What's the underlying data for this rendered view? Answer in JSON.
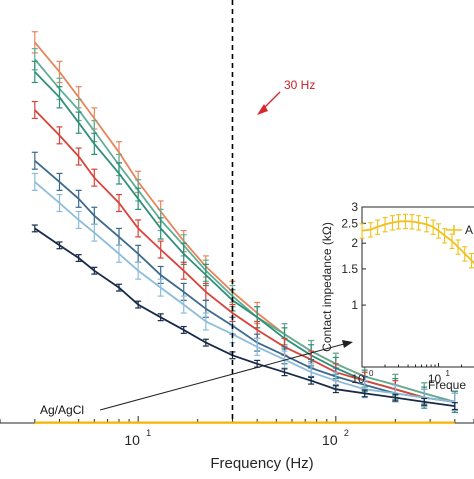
{
  "chart_data": [
    {
      "type": "line",
      "xlabel": "Frequency (Hz)",
      "xscale": "log",
      "xlim": [
        2,
        500
      ],
      "ylim": [
        0,
        1
      ],
      "x_ticks": [
        {
          "base": "10",
          "exp": "1",
          "value": 10
        },
        {
          "base": "10",
          "exp": "2",
          "value": 100
        }
      ],
      "grid": false,
      "vline": {
        "x": 30,
        "style": "dashed"
      },
      "annotations": [
        {
          "text": "30 Hz",
          "x": 30,
          "color": "#d8262f"
        },
        {
          "text": "Ag/AgCl",
          "color": "#111111"
        }
      ],
      "x": [
        3,
        4,
        5,
        6,
        8,
        10,
        13,
        17,
        22,
        30,
        40,
        55,
        75,
        100,
        140,
        200,
        280,
        400
      ],
      "series": [
        {
          "color": "#e8845a",
          "values": [
            0.9,
            0.83,
            0.77,
            0.72,
            0.64,
            0.57,
            0.5,
            0.43,
            0.37,
            0.31,
            0.26,
            0.21,
            0.17,
            0.14,
            0.11,
            0.09,
            0.07,
            0.05
          ],
          "err": 0.025
        },
        {
          "color": "#5fae95",
          "values": [
            0.86,
            0.79,
            0.74,
            0.69,
            0.61,
            0.55,
            0.48,
            0.42,
            0.36,
            0.3,
            0.25,
            0.21,
            0.17,
            0.14,
            0.11,
            0.09,
            0.07,
            0.05
          ],
          "err": 0.025
        },
        {
          "color": "#2f9078",
          "values": [
            0.83,
            0.77,
            0.71,
            0.66,
            0.59,
            0.53,
            0.46,
            0.4,
            0.35,
            0.29,
            0.25,
            0.2,
            0.16,
            0.13,
            0.1,
            0.08,
            0.06,
            0.05
          ],
          "err": 0.025
        },
        {
          "color": "#d8433a",
          "values": [
            0.74,
            0.68,
            0.63,
            0.58,
            0.52,
            0.46,
            0.41,
            0.36,
            0.31,
            0.26,
            0.22,
            0.18,
            0.15,
            0.12,
            0.1,
            0.08,
            0.06,
            0.05
          ],
          "err": 0.02
        },
        {
          "color": "#3c6a8e",
          "values": [
            0.62,
            0.57,
            0.53,
            0.49,
            0.44,
            0.4,
            0.35,
            0.31,
            0.27,
            0.23,
            0.19,
            0.16,
            0.13,
            0.11,
            0.09,
            0.07,
            0.06,
            0.05
          ],
          "err": 0.02
        },
        {
          "color": "#8cbcdc",
          "values": [
            0.57,
            0.52,
            0.48,
            0.45,
            0.4,
            0.36,
            0.32,
            0.28,
            0.24,
            0.21,
            0.18,
            0.15,
            0.12,
            0.1,
            0.08,
            0.07,
            0.06,
            0.05
          ],
          "err": 0.02
        },
        {
          "color": "#172a49",
          "values": [
            0.46,
            0.42,
            0.39,
            0.36,
            0.32,
            0.28,
            0.25,
            0.22,
            0.19,
            0.16,
            0.14,
            0.12,
            0.1,
            0.08,
            0.07,
            0.06,
            0.05,
            0.04
          ],
          "err": 0.008
        },
        {
          "color": "#f4b400",
          "values": [
            0.001,
            0.001,
            0.001,
            0.001,
            0.001,
            0.001,
            0.001,
            0.001,
            0.001,
            0.001,
            0.001,
            0.001,
            0.001,
            0.001,
            0.001,
            0.001,
            0.001,
            0.001
          ],
          "err": 0
        }
      ]
    },
    {
      "type": "line",
      "role": "inset",
      "ylabel": "Contact impedance (kΩ)",
      "xlabel": "Freque",
      "xscale": "log",
      "yscale": "log",
      "xlim": [
        1,
        50
      ],
      "ylim": [
        0.5,
        3
      ],
      "y_ticks": [
        "3",
        "2.5",
        "2",
        "1.5",
        "1"
      ],
      "x_ticks": [
        {
          "base": "10",
          "exp": "0",
          "value": 1
        },
        {
          "base": "10",
          "exp": "1",
          "value": 10
        }
      ],
      "legend": {
        "entry": "A",
        "position": "top-right"
      },
      "series": [
        {
          "color": "#f2c018",
          "x": [
            1,
            1.3,
            1.6,
            2,
            2.5,
            3,
            3.7,
            4.5,
            5.5,
            7,
            8.5,
            10,
            12,
            15,
            18,
            22,
            27,
            33
          ],
          "values": [
            2.3,
            2.33,
            2.4,
            2.47,
            2.52,
            2.55,
            2.56,
            2.55,
            2.52,
            2.47,
            2.4,
            2.3,
            2.18,
            2.05,
            1.92,
            1.78,
            1.65,
            1.52
          ],
          "err_rel": 0.08
        }
      ]
    }
  ]
}
